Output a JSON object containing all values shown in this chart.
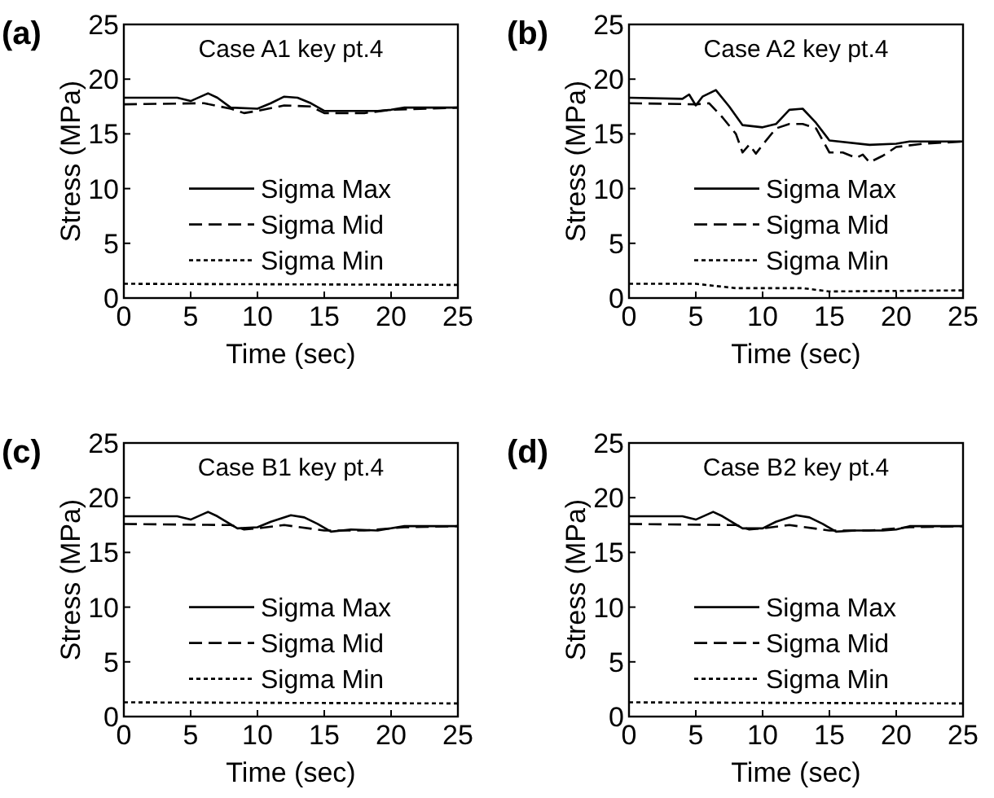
{
  "chart_data": [
    {
      "type": "line",
      "title": "Case A1 key pt.4",
      "annotations": [
        "(a)"
      ],
      "xlabel": "Time (sec)",
      "ylabel": "Stress (MPa)",
      "xlim": [
        0,
        25
      ],
      "ylim": [
        0,
        25
      ],
      "xticks": [
        0,
        5,
        10,
        15,
        20,
        25
      ],
      "yticks": [
        0,
        5,
        10,
        15,
        20,
        25
      ],
      "grid": false,
      "legend": "right",
      "series": [
        {
          "name": "Sigma Max",
          "color": "#000000",
          "line_style": "solid",
          "x": [
            0,
            4,
            5,
            6.3,
            7,
            8,
            10,
            11,
            12,
            13,
            14,
            15,
            17,
            19,
            20,
            21,
            25
          ],
          "values": [
            18.3,
            18.3,
            18.0,
            18.7,
            18.3,
            17.4,
            17.3,
            17.8,
            18.4,
            18.3,
            17.8,
            17.1,
            17.1,
            17.1,
            17.2,
            17.4,
            17.4
          ]
        },
        {
          "name": "Sigma Mid",
          "color": "#000000",
          "line_style": "dashed",
          "x": [
            0,
            6,
            8,
            9,
            10,
            12,
            14,
            15,
            18,
            20,
            25
          ],
          "values": [
            17.7,
            17.8,
            17.3,
            16.9,
            17.1,
            17.6,
            17.5,
            16.9,
            16.9,
            17.2,
            17.4
          ]
        },
        {
          "name": "Sigma Min",
          "color": "#000000",
          "line_style": "dotted",
          "x": [
            0,
            25
          ],
          "values": [
            1.3,
            1.2
          ]
        }
      ]
    },
    {
      "type": "line",
      "title": "Case A2 key pt.4",
      "annotations": [
        "(b)"
      ],
      "xlabel": "Time (sec)",
      "ylabel": "Stress (MPa)",
      "xlim": [
        0,
        25
      ],
      "ylim": [
        0,
        25
      ],
      "xticks": [
        0,
        5,
        10,
        15,
        20,
        25
      ],
      "yticks": [
        0,
        5,
        10,
        15,
        20,
        25
      ],
      "grid": false,
      "legend": "right",
      "series": [
        {
          "name": "Sigma Max",
          "color": "#000000",
          "line_style": "solid",
          "x": [
            0,
            4,
            4.5,
            5,
            5.5,
            6.5,
            7.5,
            8.5,
            10,
            11,
            12,
            13,
            14,
            15,
            18,
            20,
            21,
            25
          ],
          "values": [
            18.3,
            18.2,
            18.6,
            17.6,
            18.4,
            19.0,
            17.5,
            15.8,
            15.6,
            15.9,
            17.2,
            17.3,
            16.0,
            14.4,
            14.0,
            14.1,
            14.3,
            14.3
          ]
        },
        {
          "name": "Sigma Mid",
          "color": "#000000",
          "line_style": "dashed",
          "x": [
            0,
            5,
            6,
            7,
            8,
            8.5,
            9,
            9.5,
            10,
            11,
            12,
            13,
            14,
            15,
            16,
            17,
            17.5,
            18,
            19,
            20,
            22,
            25
          ],
          "values": [
            17.8,
            17.7,
            17.8,
            16.5,
            15.0,
            13.3,
            14.0,
            13.2,
            14.0,
            15.5,
            15.9,
            15.9,
            15.5,
            13.3,
            13.3,
            12.8,
            13.1,
            12.4,
            13.0,
            13.8,
            14.1,
            14.3
          ]
        },
        {
          "name": "Sigma Min",
          "color": "#000000",
          "line_style": "dotted",
          "x": [
            0,
            5,
            8,
            13,
            15,
            25
          ],
          "values": [
            1.3,
            1.3,
            0.9,
            0.9,
            0.6,
            0.7
          ]
        }
      ]
    },
    {
      "type": "line",
      "title": "Case B1 key pt.4",
      "annotations": [
        "(c)"
      ],
      "xlabel": "Time (sec)",
      "ylabel": "Stress (MPa)",
      "xlim": [
        0,
        25
      ],
      "ylim": [
        0,
        25
      ],
      "xticks": [
        0,
        5,
        10,
        15,
        20,
        25
      ],
      "yticks": [
        0,
        5,
        10,
        15,
        20,
        25
      ],
      "grid": false,
      "legend": "right",
      "series": [
        {
          "name": "Sigma Max",
          "color": "#000000",
          "line_style": "solid",
          "x": [
            0,
            4,
            5,
            6.3,
            7,
            8.5,
            10,
            11,
            12.5,
            13.5,
            14.5,
            15.5,
            17,
            19,
            20,
            21,
            25
          ],
          "values": [
            18.3,
            18.3,
            18.0,
            18.7,
            18.3,
            17.2,
            17.3,
            17.8,
            18.4,
            18.2,
            17.6,
            16.9,
            17.1,
            17.0,
            17.2,
            17.4,
            17.4
          ]
        },
        {
          "name": "Sigma Mid",
          "color": "#000000",
          "line_style": "dashed",
          "x": [
            0,
            8,
            9,
            10,
            12,
            15,
            18,
            20,
            21,
            25
          ],
          "values": [
            17.6,
            17.5,
            17.1,
            17.2,
            17.5,
            17.0,
            17.0,
            17.2,
            17.3,
            17.4
          ]
        },
        {
          "name": "Sigma Min",
          "color": "#000000",
          "line_style": "dotted",
          "x": [
            0,
            25
          ],
          "values": [
            1.3,
            1.2
          ]
        }
      ]
    },
    {
      "type": "line",
      "title": "Case B2 key pt.4",
      "annotations": [
        "(d)"
      ],
      "xlabel": "Time (sec)",
      "ylabel": "Stress (MPa)",
      "xlim": [
        0,
        25
      ],
      "ylim": [
        0,
        25
      ],
      "xticks": [
        0,
        5,
        10,
        15,
        20,
        25
      ],
      "yticks": [
        0,
        5,
        10,
        15,
        20,
        25
      ],
      "grid": false,
      "legend": "right",
      "series": [
        {
          "name": "Sigma Max",
          "color": "#000000",
          "line_style": "solid",
          "x": [
            0,
            4,
            5,
            6.3,
            7,
            8.5,
            10,
            11,
            12.5,
            13.5,
            14.5,
            15.5,
            17,
            19,
            20,
            21,
            25
          ],
          "values": [
            18.3,
            18.3,
            18.0,
            18.7,
            18.3,
            17.2,
            17.2,
            17.8,
            18.4,
            18.2,
            17.6,
            16.9,
            17.0,
            17.0,
            17.1,
            17.4,
            17.4
          ]
        },
        {
          "name": "Sigma Mid",
          "color": "#000000",
          "line_style": "dashed",
          "x": [
            0,
            8,
            9,
            10,
            12,
            15,
            18,
            20,
            21,
            25
          ],
          "values": [
            17.6,
            17.5,
            17.1,
            17.2,
            17.5,
            17.0,
            17.0,
            17.2,
            17.3,
            17.4
          ]
        },
        {
          "name": "Sigma Min",
          "color": "#000000",
          "line_style": "dotted",
          "x": [
            0,
            25
          ],
          "values": [
            1.3,
            1.2
          ]
        }
      ]
    }
  ]
}
